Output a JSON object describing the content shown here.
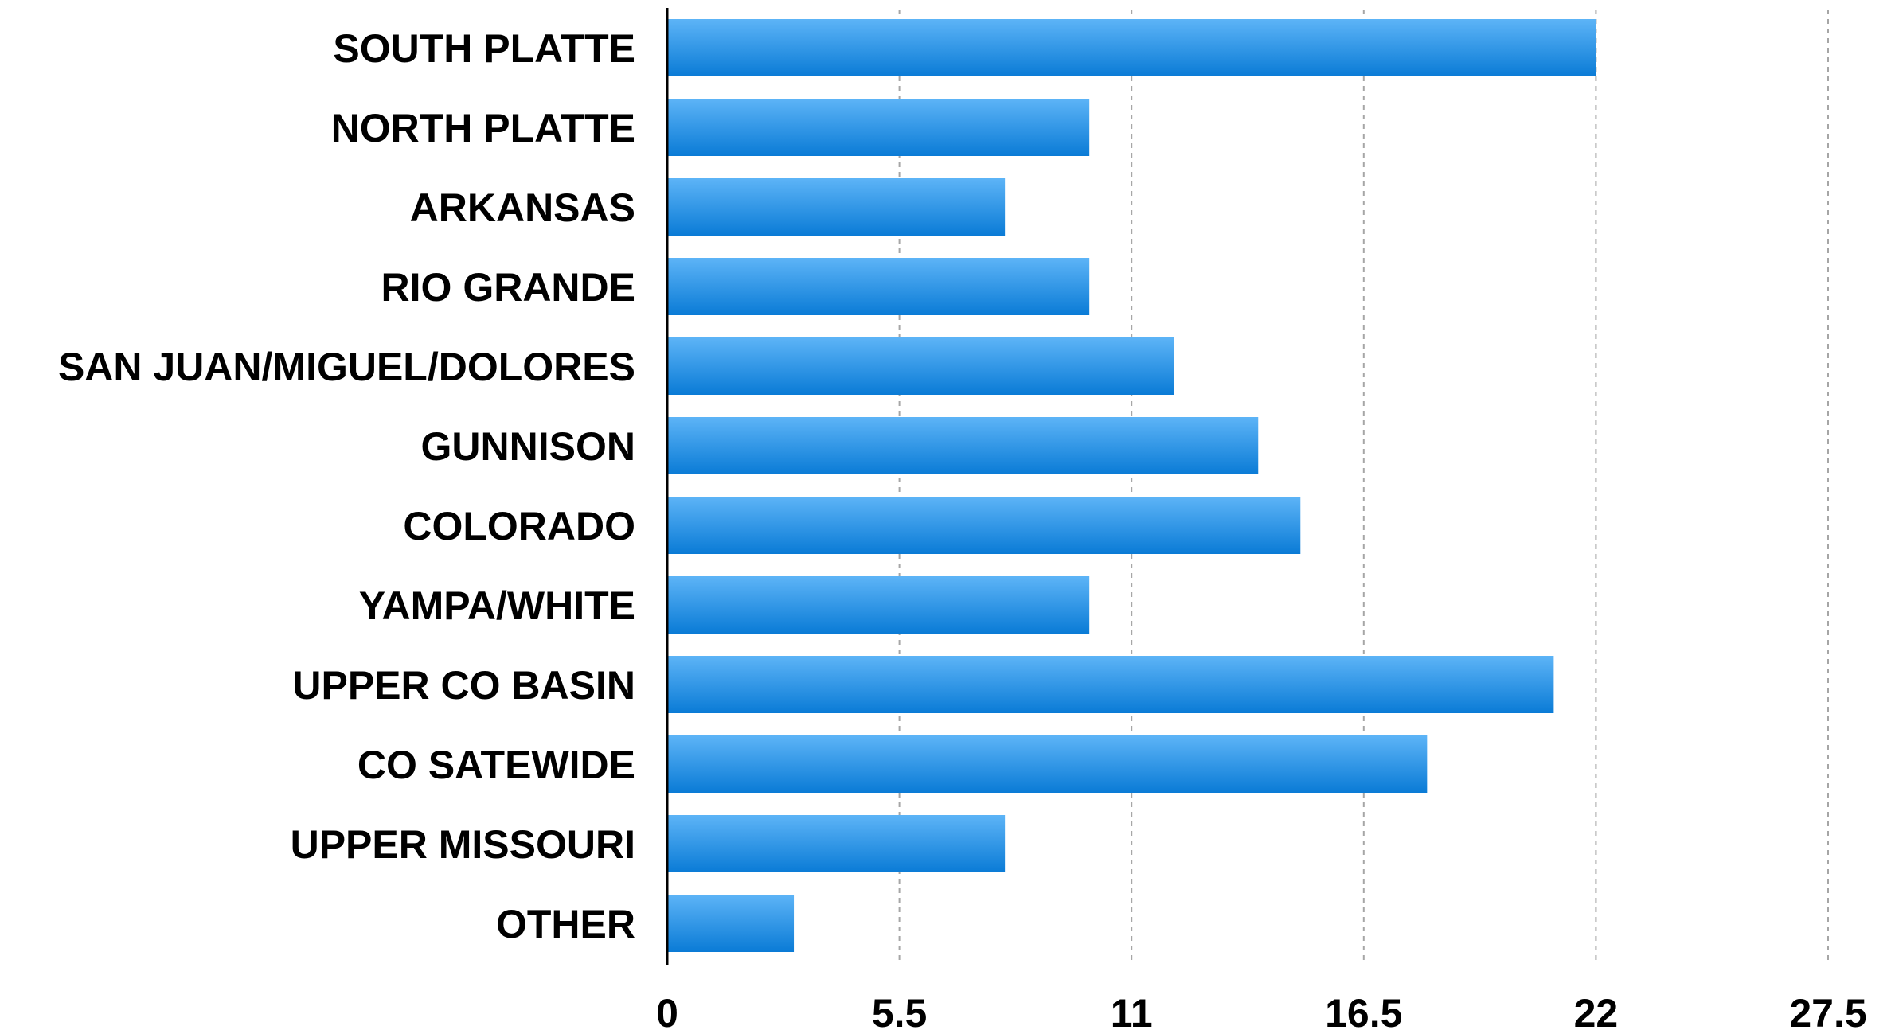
{
  "chart_data": {
    "type": "bar",
    "orientation": "horizontal",
    "categories": [
      "SOUTH PLATTE",
      "NORTH PLATTE",
      "ARKANSAS",
      "RIO GRANDE",
      "SAN JUAN/MIGUEL/DOLORES",
      "GUNNISON",
      "COLORADO",
      "YAMPA/WHITE",
      "UPPER CO BASIN",
      "CO SATEWIDE",
      "UPPER MISSOURI",
      "OTHER"
    ],
    "values": [
      22,
      10,
      8,
      10,
      12,
      14,
      15,
      10,
      21,
      18,
      8,
      3
    ],
    "title": "",
    "xlabel": "",
    "ylabel": "",
    "xlim": [
      0,
      27.5
    ],
    "xticks": [
      0,
      5.5,
      11,
      16.5,
      22,
      27.5
    ],
    "xtick_labels": [
      "0",
      "5.5",
      "11",
      "16.5",
      "22",
      "27.5"
    ],
    "grid": "vertical-dashed",
    "legend": "none",
    "colors": {
      "bar_top": "#5db4f7",
      "bar_bottom": "#0a7bd6",
      "grid": "#a6a6a6",
      "axis": "#000000",
      "text": "#000000"
    }
  }
}
